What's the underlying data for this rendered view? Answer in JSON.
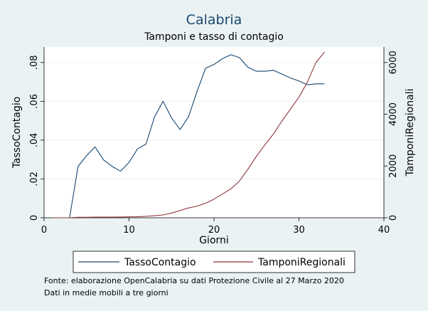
{
  "chart_data": {
    "type": "line",
    "title": "Calabria",
    "subtitle": "Tamponi e tasso di contagio",
    "xlabel": "Giorni",
    "ylabel_left": "TassoContagio",
    "ylabel_right": "TamponiRegionali",
    "xlim": [
      0,
      40
    ],
    "ylim_left": [
      0,
      0.088
    ],
    "ylim_right": [
      0,
      6600
    ],
    "x_ticks": [
      0,
      10,
      20,
      30,
      40
    ],
    "y_left_ticks": [
      0,
      0.02,
      0.04,
      0.06,
      0.08
    ],
    "y_left_tick_labels": [
      "0",
      ".02",
      ".04",
      ".06",
      ".08"
    ],
    "y_right_ticks": [
      0,
      2000,
      4000,
      6000
    ],
    "y_right_tick_labels": [
      "0",
      "2000",
      "4000",
      "6000"
    ],
    "grid": "horizontal",
    "legend_position": "bottom",
    "series": [
      {
        "name": "TassoContagio",
        "axis": "left",
        "color": "#1a476f",
        "x": [
          1,
          2,
          3,
          4,
          5,
          6,
          7,
          8,
          9,
          10,
          11,
          12,
          13,
          14,
          15,
          16,
          17,
          18,
          19,
          20,
          21,
          22,
          23,
          24,
          25,
          26,
          27,
          28,
          29,
          30,
          31,
          32,
          33
        ],
        "values": [
          0,
          0,
          0,
          0.0265,
          0.032,
          0.0365,
          0.0298,
          0.0265,
          0.024,
          0.0285,
          0.0355,
          0.038,
          0.052,
          0.06,
          0.0515,
          0.0455,
          0.052,
          0.065,
          0.077,
          0.079,
          0.082,
          0.084,
          0.0825,
          0.0775,
          0.0755,
          0.0755,
          0.076,
          0.074,
          0.072,
          0.0705,
          0.0685,
          0.069,
          0.069
        ]
      },
      {
        "name": "TamponiRegionali",
        "axis": "right",
        "color": "#90353b",
        "x": [
          1,
          2,
          3,
          4,
          5,
          6,
          7,
          8,
          9,
          10,
          11,
          12,
          13,
          14,
          15,
          16,
          17,
          18,
          19,
          20,
          21,
          22,
          23,
          24,
          25,
          26,
          27,
          28,
          29,
          30,
          31,
          32,
          33
        ],
        "values": [
          0,
          0,
          0,
          20,
          20,
          25,
          25,
          25,
          30,
          35,
          40,
          55,
          80,
          110,
          180,
          280,
          380,
          450,
          560,
          720,
          920,
          1120,
          1420,
          1880,
          2380,
          2820,
          3240,
          3740,
          4200,
          4660,
          5250,
          6000,
          6400
        ]
      }
    ]
  },
  "source_note": "Fonte: elaborazione OpenCalabria su dati Protezione Civile al 27 Marzo 2020",
  "method_note": "Dati in medie mobili a tre giorni"
}
